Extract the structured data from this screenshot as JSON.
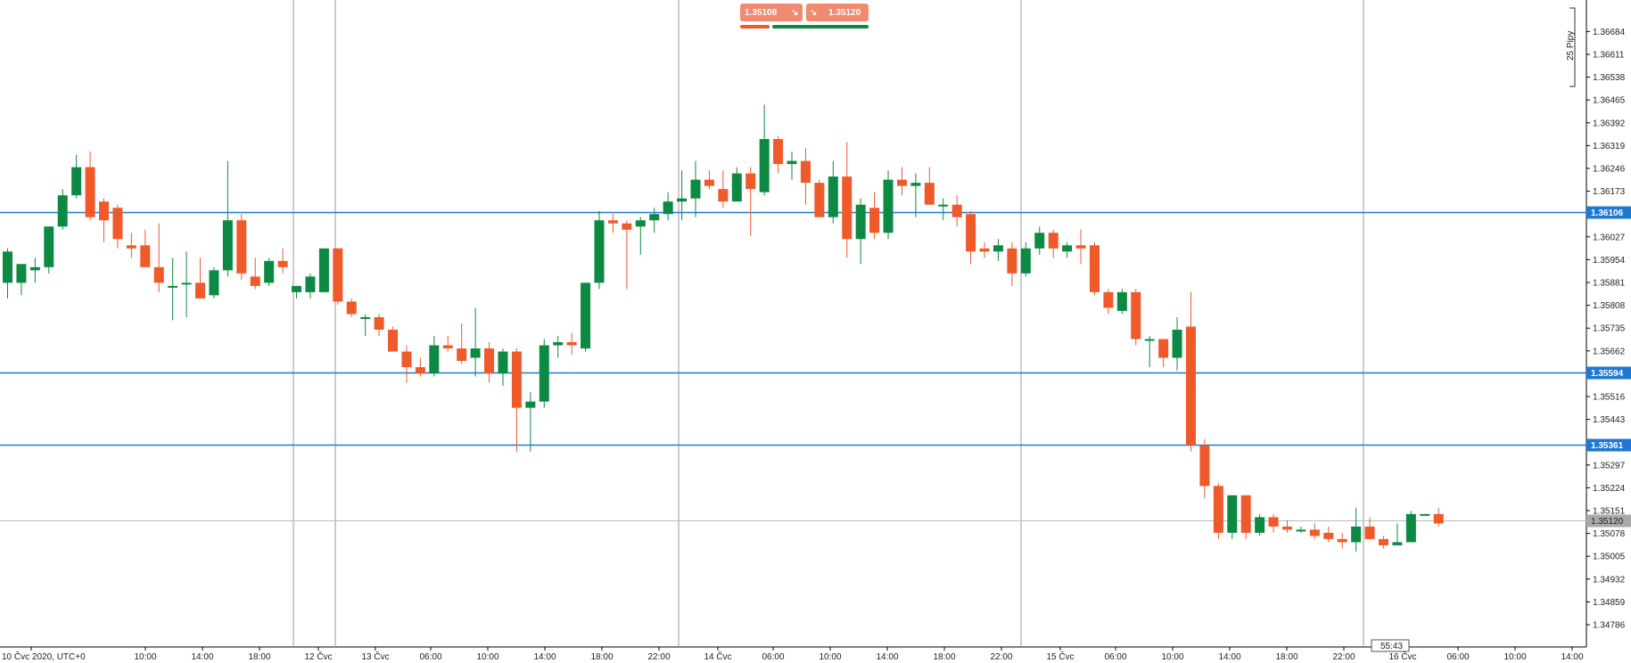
{
  "quote_panel": {
    "bid": "1.35108",
    "ask": "1.35120",
    "bid_arrow": "↘",
    "ask_arrow": "↘"
  },
  "timer": "55:43",
  "colors": {
    "up": "#0c8a43",
    "down": "#ee5a2a",
    "level_line": "#1f78d1",
    "badge": "#f08a70",
    "price_line_label": "#a9a9a9"
  },
  "chart_data": {
    "type": "candlestick",
    "pips_label": "25 Pipy",
    "y_ticks": [
      "1.36684",
      "1.36611",
      "1.36538",
      "1.36465",
      "1.36392",
      "1.36319",
      "1.36246",
      "1.36173",
      "1.36027",
      "1.35954",
      "1.35881",
      "1.35808",
      "1.35735",
      "1.35662",
      "1.35516",
      "1.35443",
      "1.35297",
      "1.35224",
      "1.35151",
      "1.35078",
      "1.35005",
      "1.34932",
      "1.34859",
      "1.34786"
    ],
    "ylim": [
      1.3475,
      1.3675
    ],
    "x_labels": [
      "10 Čvc 2020, UTC+0",
      "10:00",
      "14:00",
      "18:00",
      "12 Čvc",
      "13 Čvc",
      "06:00",
      "10:00",
      "14:00",
      "18:00",
      "22:00",
      "14 Čvc",
      "06:00",
      "10:00",
      "14:00",
      "18:00",
      "22:00",
      "15 Čvc",
      "06:00",
      "10:00",
      "14:00",
      "18:00",
      "22:00",
      "16 Čvc",
      "06:00",
      "10:00",
      "14:00"
    ],
    "horizontal_levels": [
      {
        "price": "1.36106",
        "value": 1.36106
      },
      {
        "price": "1.35594",
        "value": 1.35594
      },
      {
        "price": "1.35361",
        "value": 1.35361
      }
    ],
    "current_price": {
      "price": "1.35120",
      "value": 1.3512
    },
    "candles": [
      {
        "o": 1.3588,
        "h": 1.3599,
        "l": 1.3583,
        "c": 1.3598
      },
      {
        "o": 1.3588,
        "h": 1.3594,
        "l": 1.3584,
        "c": 1.3594
      },
      {
        "o": 1.3592,
        "h": 1.3596,
        "l": 1.3588,
        "c": 1.3593
      },
      {
        "o": 1.3593,
        "h": 1.3606,
        "l": 1.3591,
        "c": 1.3606
      },
      {
        "o": 1.3606,
        "h": 1.3618,
        "l": 1.3605,
        "c": 1.3616
      },
      {
        "o": 1.3616,
        "h": 1.3629,
        "l": 1.3615,
        "c": 1.3625
      },
      {
        "o": 1.3625,
        "h": 1.363,
        "l": 1.3608,
        "c": 1.3609
      },
      {
        "o": 1.3614,
        "h": 1.3615,
        "l": 1.3601,
        "c": 1.3608
      },
      {
        "o": 1.3612,
        "h": 1.3613,
        "l": 1.3599,
        "c": 1.3602
      },
      {
        "o": 1.36,
        "h": 1.3604,
        "l": 1.3596,
        "c": 1.3599
      },
      {
        "o": 1.36,
        "h": 1.3605,
        "l": 1.3593,
        "c": 1.3593
      },
      {
        "o": 1.3593,
        "h": 1.3607,
        "l": 1.3585,
        "c": 1.3588
      },
      {
        "o": 1.3587,
        "h": 1.3596,
        "l": 1.3576,
        "c": 1.3587
      },
      {
        "o": 1.3588,
        "h": 1.3598,
        "l": 1.3577,
        "c": 1.3588
      },
      {
        "o": 1.3588,
        "h": 1.3596,
        "l": 1.3583,
        "c": 1.3583
      },
      {
        "o": 1.3584,
        "h": 1.3593,
        "l": 1.3583,
        "c": 1.3592
      },
      {
        "o": 1.3592,
        "h": 1.3627,
        "l": 1.359,
        "c": 1.3608
      },
      {
        "o": 1.3608,
        "h": 1.361,
        "l": 1.3589,
        "c": 1.3591
      },
      {
        "o": 1.359,
        "h": 1.3596,
        "l": 1.3586,
        "c": 1.3587
      },
      {
        "o": 1.3588,
        "h": 1.3596,
        "l": 1.3587,
        "c": 1.3595
      },
      {
        "o": 1.3595,
        "h": 1.3599,
        "l": 1.3591,
        "c": 1.3593
      },
      {
        "o": 1.3585,
        "h": 1.3587,
        "l": 1.3583,
        "c": 1.3587
      },
      {
        "o": 1.3585,
        "h": 1.3591,
        "l": 1.3583,
        "c": 1.359
      },
      {
        "o": 1.3585,
        "h": 1.3599,
        "l": 1.3585,
        "c": 1.3599
      },
      {
        "o": 1.3599,
        "h": 1.3599,
        "l": 1.3581,
        "c": 1.3582
      },
      {
        "o": 1.3582,
        "h": 1.3583,
        "l": 1.3577,
        "c": 1.3578
      },
      {
        "o": 1.3577,
        "h": 1.3578,
        "l": 1.3571,
        "c": 1.3577
      },
      {
        "o": 1.3577,
        "h": 1.3578,
        "l": 1.3571,
        "c": 1.3573
      },
      {
        "o": 1.3573,
        "h": 1.3574,
        "l": 1.3566,
        "c": 1.3566
      },
      {
        "o": 1.3566,
        "h": 1.3568,
        "l": 1.3556,
        "c": 1.3561
      },
      {
        "o": 1.3561,
        "h": 1.3564,
        "l": 1.3558,
        "c": 1.3559
      },
      {
        "o": 1.3559,
        "h": 1.3571,
        "l": 1.3558,
        "c": 1.3568
      },
      {
        "o": 1.3568,
        "h": 1.3571,
        "l": 1.3566,
        "c": 1.3567
      },
      {
        "o": 1.3567,
        "h": 1.3575,
        "l": 1.3562,
        "c": 1.3563
      },
      {
        "o": 1.3564,
        "h": 1.358,
        "l": 1.3558,
        "c": 1.3567
      },
      {
        "o": 1.3567,
        "h": 1.3569,
        "l": 1.3556,
        "c": 1.3559
      },
      {
        "o": 1.3559,
        "h": 1.3567,
        "l": 1.3555,
        "c": 1.3566
      },
      {
        "o": 1.3566,
        "h": 1.3567,
        "l": 1.3534,
        "c": 1.3548
      },
      {
        "o": 1.3548,
        "h": 1.3553,
        "l": 1.3534,
        "c": 1.355
      },
      {
        "o": 1.355,
        "h": 1.357,
        "l": 1.3548,
        "c": 1.3568
      },
      {
        "o": 1.3568,
        "h": 1.3571,
        "l": 1.3564,
        "c": 1.3569
      },
      {
        "o": 1.3569,
        "h": 1.3572,
        "l": 1.3565,
        "c": 1.3568
      },
      {
        "o": 1.3567,
        "h": 1.3588,
        "l": 1.3566,
        "c": 1.3588
      },
      {
        "o": 1.3588,
        "h": 1.3611,
        "l": 1.3586,
        "c": 1.3608
      },
      {
        "o": 1.3608,
        "h": 1.361,
        "l": 1.3604,
        "c": 1.3607
      },
      {
        "o": 1.3607,
        "h": 1.3608,
        "l": 1.3586,
        "c": 1.3605
      },
      {
        "o": 1.3606,
        "h": 1.3609,
        "l": 1.3597,
        "c": 1.3608
      },
      {
        "o": 1.3608,
        "h": 1.3612,
        "l": 1.3604,
        "c": 1.361
      },
      {
        "o": 1.361,
        "h": 1.3617,
        "l": 1.3608,
        "c": 1.3614
      },
      {
        "o": 1.3614,
        "h": 1.3624,
        "l": 1.3608,
        "c": 1.3615
      },
      {
        "o": 1.3615,
        "h": 1.3627,
        "l": 1.3609,
        "c": 1.3621
      },
      {
        "o": 1.3621,
        "h": 1.3624,
        "l": 1.3618,
        "c": 1.3619
      },
      {
        "o": 1.3618,
        "h": 1.3624,
        "l": 1.3612,
        "c": 1.3614
      },
      {
        "o": 1.3614,
        "h": 1.3625,
        "l": 1.3614,
        "c": 1.3623
      },
      {
        "o": 1.3623,
        "h": 1.3625,
        "l": 1.3603,
        "c": 1.3618
      },
      {
        "o": 1.3617,
        "h": 1.3645,
        "l": 1.3616,
        "c": 1.3634
      },
      {
        "o": 1.3634,
        "h": 1.3635,
        "l": 1.3623,
        "c": 1.3626
      },
      {
        "o": 1.3626,
        "h": 1.363,
        "l": 1.3621,
        "c": 1.3627
      },
      {
        "o": 1.3627,
        "h": 1.3631,
        "l": 1.3613,
        "c": 1.362
      },
      {
        "o": 1.362,
        "h": 1.3621,
        "l": 1.3609,
        "c": 1.3609
      },
      {
        "o": 1.3609,
        "h": 1.3627,
        "l": 1.3607,
        "c": 1.3622
      },
      {
        "o": 1.3622,
        "h": 1.3633,
        "l": 1.3596,
        "c": 1.3602
      },
      {
        "o": 1.3602,
        "h": 1.3615,
        "l": 1.3594,
        "c": 1.3613
      },
      {
        "o": 1.3612,
        "h": 1.3617,
        "l": 1.3602,
        "c": 1.3604
      },
      {
        "o": 1.3604,
        "h": 1.3624,
        "l": 1.3602,
        "c": 1.3621
      },
      {
        "o": 1.3621,
        "h": 1.3625,
        "l": 1.3616,
        "c": 1.3619
      },
      {
        "o": 1.3619,
        "h": 1.3623,
        "l": 1.3609,
        "c": 1.362
      },
      {
        "o": 1.362,
        "h": 1.3625,
        "l": 1.3613,
        "c": 1.3613
      },
      {
        "o": 1.3613,
        "h": 1.3615,
        "l": 1.3608,
        "c": 1.3613
      },
      {
        "o": 1.3613,
        "h": 1.3616,
        "l": 1.3606,
        "c": 1.3609
      },
      {
        "o": 1.361,
        "h": 1.3611,
        "l": 1.3594,
        "c": 1.3598
      },
      {
        "o": 1.3599,
        "h": 1.3601,
        "l": 1.3596,
        "c": 1.3598
      },
      {
        "o": 1.3598,
        "h": 1.3602,
        "l": 1.3595,
        "c": 1.36
      },
      {
        "o": 1.3599,
        "h": 1.3601,
        "l": 1.3587,
        "c": 1.3591
      },
      {
        "o": 1.3591,
        "h": 1.3601,
        "l": 1.359,
        "c": 1.3599
      },
      {
        "o": 1.3599,
        "h": 1.3606,
        "l": 1.3597,
        "c": 1.3604
      },
      {
        "o": 1.3604,
        "h": 1.3605,
        "l": 1.3596,
        "c": 1.3599
      },
      {
        "o": 1.3598,
        "h": 1.3601,
        "l": 1.3596,
        "c": 1.36
      },
      {
        "o": 1.36,
        "h": 1.3605,
        "l": 1.3594,
        "c": 1.3599
      },
      {
        "o": 1.36,
        "h": 1.3601,
        "l": 1.3584,
        "c": 1.3585
      },
      {
        "o": 1.3585,
        "h": 1.3586,
        "l": 1.3578,
        "c": 1.358
      },
      {
        "o": 1.3579,
        "h": 1.3586,
        "l": 1.3578,
        "c": 1.3585
      },
      {
        "o": 1.3585,
        "h": 1.3586,
        "l": 1.3568,
        "c": 1.357
      },
      {
        "o": 1.357,
        "h": 1.3571,
        "l": 1.3561,
        "c": 1.357
      },
      {
        "o": 1.357,
        "h": 1.357,
        "l": 1.3561,
        "c": 1.3564
      },
      {
        "o": 1.3564,
        "h": 1.3577,
        "l": 1.356,
        "c": 1.3573
      },
      {
        "o": 1.3574,
        "h": 1.3585,
        "l": 1.3534,
        "c": 1.3536
      },
      {
        "o": 1.3536,
        "h": 1.3538,
        "l": 1.3519,
        "c": 1.3523
      },
      {
        "o": 1.3523,
        "h": 1.3524,
        "l": 1.3506,
        "c": 1.3508
      },
      {
        "o": 1.3508,
        "h": 1.352,
        "l": 1.3506,
        "c": 1.352
      },
      {
        "o": 1.352,
        "h": 1.352,
        "l": 1.3506,
        "c": 1.3508
      },
      {
        "o": 1.3508,
        "h": 1.3514,
        "l": 1.3507,
        "c": 1.3513
      },
      {
        "o": 1.3513,
        "h": 1.3514,
        "l": 1.3508,
        "c": 1.351
      },
      {
        "o": 1.351,
        "h": 1.3512,
        "l": 1.3508,
        "c": 1.3509
      },
      {
        "o": 1.3509,
        "h": 1.351,
        "l": 1.3508,
        "c": 1.3509
      },
      {
        "o": 1.3509,
        "h": 1.3511,
        "l": 1.3506,
        "c": 1.3507
      },
      {
        "o": 1.3508,
        "h": 1.351,
        "l": 1.3505,
        "c": 1.3506
      },
      {
        "o": 1.3506,
        "h": 1.3508,
        "l": 1.3503,
        "c": 1.3505
      },
      {
        "o": 1.3505,
        "h": 1.3516,
        "l": 1.3502,
        "c": 1.351
      },
      {
        "o": 1.351,
        "h": 1.3513,
        "l": 1.3506,
        "c": 1.3506
      },
      {
        "o": 1.3506,
        "h": 1.3507,
        "l": 1.3503,
        "c": 1.3504
      },
      {
        "o": 1.3504,
        "h": 1.3511,
        "l": 1.3504,
        "c": 1.3505
      },
      {
        "o": 1.3505,
        "h": 1.3515,
        "l": 1.3505,
        "c": 1.3514
      },
      {
        "o": 1.3514,
        "h": 1.3514,
        "l": 1.3514,
        "c": 1.3514
      },
      {
        "o": 1.3514,
        "h": 1.3516,
        "l": 1.351,
        "c": 1.3511
      }
    ]
  }
}
